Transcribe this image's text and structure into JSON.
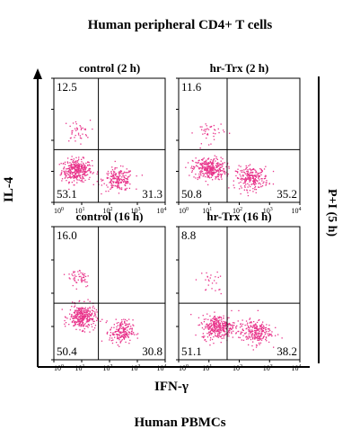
{
  "figure": {
    "title": "Human peripheral CD4+ T cells",
    "x_axis_label": "IFN-γ",
    "y_axis_label": "IL-4",
    "right_label": "P+I (5 h)",
    "bottom_caption": "Human PBMCs",
    "dot_color": "#e8338a"
  },
  "chart_data": [
    {
      "type": "scatter",
      "title": "control (2 h)",
      "xlabel": "IFN-γ",
      "ylabel": "IL-4",
      "x_scale": "log",
      "x_ticks": [
        "10⁰",
        "10¹",
        "10²",
        "10³",
        "10⁴"
      ],
      "xlim": [
        1,
        10000
      ],
      "ylim": [
        1,
        10000
      ],
      "quadrant_percentages": {
        "upper_left": "12.5",
        "lower_left": "53.1",
        "lower_right": "31.3"
      },
      "populations": [
        {
          "center_log10": [
            0.8,
            1.05
          ],
          "spread_log10": [
            0.45,
            0.3
          ],
          "count": 340
        },
        {
          "center_log10": [
            2.3,
            0.75
          ],
          "spread_log10": [
            0.45,
            0.3
          ],
          "count": 200
        },
        {
          "center_log10": [
            0.8,
            2.3
          ],
          "spread_log10": [
            0.4,
            0.3
          ],
          "count": 40
        }
      ]
    },
    {
      "type": "scatter",
      "title": "hr-Trx (2 h)",
      "xlabel": "IFN-γ",
      "ylabel": "IL-4",
      "x_scale": "log",
      "x_ticks": [
        "10⁰",
        "10¹",
        "10²",
        "10³",
        "10⁴"
      ],
      "xlim": [
        1,
        10000
      ],
      "ylim": [
        1,
        10000
      ],
      "quadrant_percentages": {
        "upper_left": "11.6",
        "lower_left": "50.8",
        "lower_right": "35.2"
      },
      "populations": [
        {
          "center_log10": [
            1.0,
            1.1
          ],
          "spread_log10": [
            0.45,
            0.3
          ],
          "count": 320
        },
        {
          "center_log10": [
            2.4,
            0.8
          ],
          "spread_log10": [
            0.45,
            0.3
          ],
          "count": 230
        },
        {
          "center_log10": [
            1.0,
            2.3
          ],
          "spread_log10": [
            0.4,
            0.3
          ],
          "count": 40
        }
      ]
    },
    {
      "type": "scatter",
      "title": "control (16 h)",
      "xlabel": "IFN-γ",
      "ylabel": "IL-4",
      "x_scale": "log",
      "x_ticks": [
        "10⁰",
        "10¹",
        "10²",
        "10³",
        "10⁴"
      ],
      "xlim": [
        1,
        10000
      ],
      "ylim": [
        1,
        10000
      ],
      "quadrant_percentages": {
        "upper_left": "16.0",
        "lower_left": "50.4",
        "lower_right": "30.8"
      },
      "populations": [
        {
          "center_log10": [
            1.0,
            1.3
          ],
          "spread_log10": [
            0.4,
            0.3
          ],
          "count": 320
        },
        {
          "center_log10": [
            2.4,
            0.85
          ],
          "spread_log10": [
            0.35,
            0.3
          ],
          "count": 190
        },
        {
          "center_log10": [
            0.9,
            2.5
          ],
          "spread_log10": [
            0.35,
            0.25
          ],
          "count": 50
        }
      ]
    },
    {
      "type": "scatter",
      "title": "hr-Trx (16 h)",
      "xlabel": "IFN-γ",
      "ylabel": "IL-4",
      "x_scale": "log",
      "x_ticks": [
        "10⁰",
        "10¹",
        "10²",
        "10³",
        "10⁴"
      ],
      "xlim": [
        1,
        10000
      ],
      "ylim": [
        1,
        10000
      ],
      "quadrant_percentages": {
        "upper_left": "8.8",
        "lower_left": "51.1",
        "lower_right": "38.2"
      },
      "populations": [
        {
          "center_log10": [
            1.3,
            1.0
          ],
          "spread_log10": [
            0.45,
            0.3
          ],
          "count": 320
        },
        {
          "center_log10": [
            2.5,
            0.85
          ],
          "spread_log10": [
            0.45,
            0.3
          ],
          "count": 240
        },
        {
          "center_log10": [
            1.0,
            2.3
          ],
          "spread_log10": [
            0.4,
            0.3
          ],
          "count": 25
        }
      ]
    }
  ]
}
